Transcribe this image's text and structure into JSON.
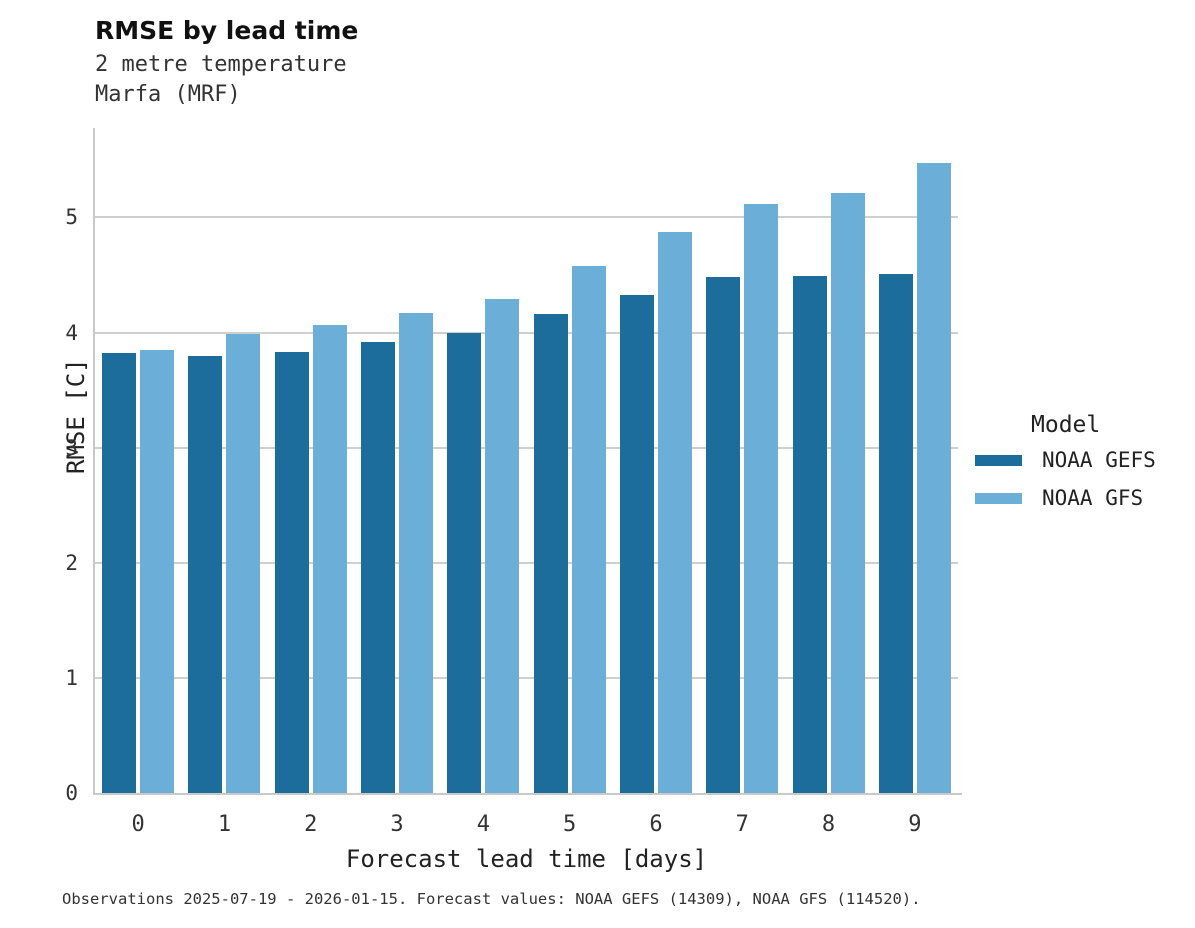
{
  "chart_data": {
    "type": "bar",
    "title": "RMSE by lead time",
    "subtitle1": "2 metre temperature",
    "subtitle2": "Marfa (MRF)",
    "xlabel": "Forecast lead time [days]",
    "ylabel": "RMSE [C]",
    "categories": [
      "0",
      "1",
      "2",
      "3",
      "4",
      "5",
      "6",
      "7",
      "8",
      "9"
    ],
    "series": [
      {
        "name": "NOAA GEFS",
        "color": "#1c6d9c",
        "values": [
          3.82,
          3.8,
          3.83,
          3.92,
          4.0,
          4.16,
          4.33,
          4.48,
          4.49,
          4.51
        ]
      },
      {
        "name": "NOAA GFS",
        "color": "#6bafd9",
        "values": [
          3.85,
          3.99,
          4.07,
          4.17,
          4.29,
          4.58,
          4.87,
          5.12,
          5.21,
          5.47
        ]
      }
    ],
    "yticks": [
      0,
      1,
      2,
      3,
      4,
      5
    ],
    "ylim": [
      0,
      5.76
    ],
    "grid": "y-major",
    "legend": {
      "title": "Model",
      "position": "right"
    },
    "caption": "Observations 2025-07-19 - 2026-01-15. Forecast values: NOAA GEFS (14309), NOAA GFS (114520)."
  },
  "colors": {
    "gridline": "#cfcfcf",
    "spine": "#c9c9c9",
    "title_text": "#111111",
    "body_text": "#333333"
  }
}
